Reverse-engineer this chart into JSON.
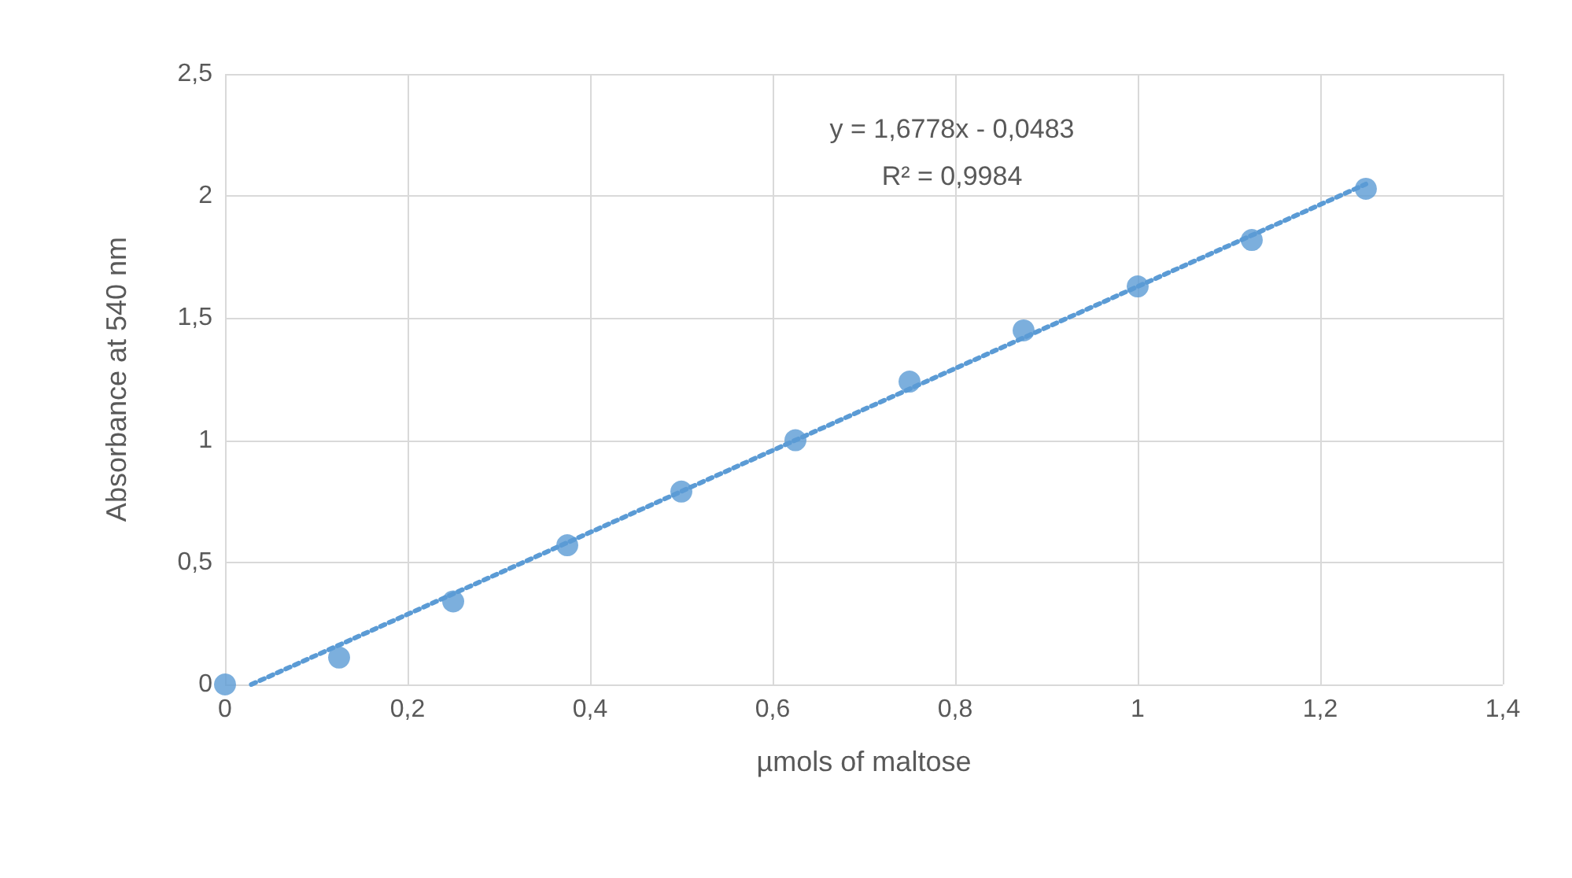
{
  "chart_data": {
    "type": "scatter",
    "xlabel": "µmols of maltose",
    "ylabel": "Absorbance at 540 nm",
    "xlim": [
      0,
      1.4
    ],
    "xticks": [
      0,
      {
        "value": 0.2,
        "label": "0,2"
      },
      {
        "value": 0.4,
        "label": "0,4"
      },
      {
        "value": 0.6,
        "label": "0,6"
      },
      {
        "value": 0.8,
        "label": "0,8"
      },
      1,
      {
        "value": 1.2,
        "label": "1,2"
      },
      {
        "value": 1.4,
        "label": "1,4"
      }
    ],
    "ylim": [
      0,
      2.5
    ],
    "yticks": [
      0,
      {
        "value": 0.5,
        "label": "0,5"
      },
      1,
      {
        "value": 1.5,
        "label": "1,5"
      },
      2,
      {
        "value": 2.5,
        "label": "2,5"
      }
    ],
    "grid": true,
    "series": [
      {
        "marker": "circle",
        "color": "#5b9bd5",
        "x": [
          0,
          0.125,
          0.25,
          0.375,
          0.5,
          0.625,
          0.75,
          0.875,
          1,
          1.125,
          1.25
        ],
        "values": [
          0,
          0.11,
          0.34,
          0.57,
          0.79,
          1.0,
          1.24,
          1.45,
          1.63,
          1.82,
          2.03
        ]
      },
      {
        "type": "line",
        "color": "#5b9bd5",
        "line_style": "dotted",
        "x": [
          0.0288,
          1.25
        ],
        "values": [
          0,
          2.049
        ]
      }
    ],
    "annotations": [
      "y = 1,6778x - 0,0483",
      "R² = 0,9984"
    ]
  }
}
